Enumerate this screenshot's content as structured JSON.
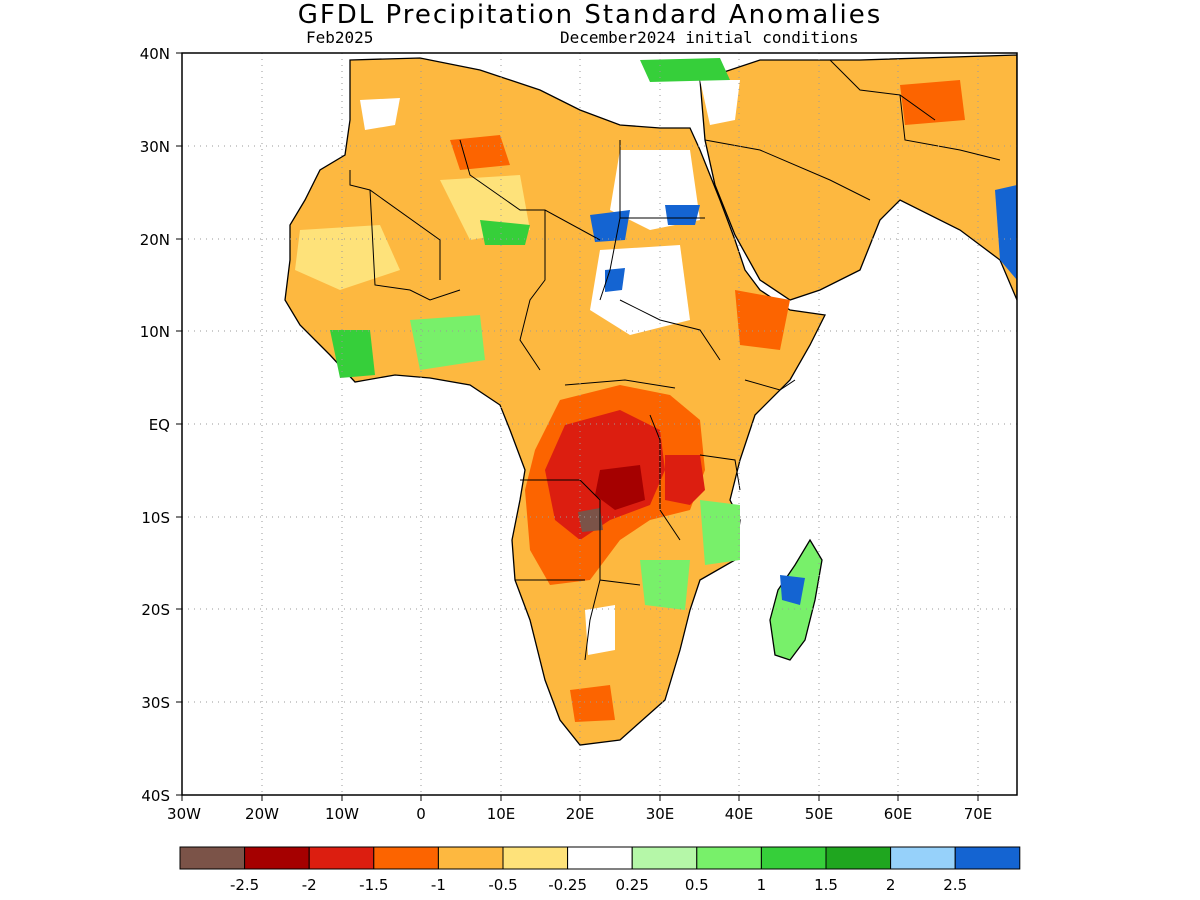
{
  "title": "GFDL Precipitation Standard Anomalies",
  "subtitle_left": "Feb2025",
  "subtitle_right": "December2024 initial conditions",
  "lat_labels": [
    "40N",
    "30N",
    "20N",
    "10N",
    "EQ",
    "10S",
    "20S",
    "30S",
    "40S"
  ],
  "lon_labels": [
    "30W",
    "20W",
    "10W",
    "0",
    "10E",
    "20E",
    "30E",
    "40E",
    "50E",
    "60E",
    "70E"
  ],
  "colorbar": {
    "colors": [
      "#7b5348",
      "#a50000",
      "#dc1e10",
      "#fc6400",
      "#fdb840",
      "#fee27a",
      "#ffffff",
      "#b5f7a8",
      "#78f06a",
      "#36cf3a",
      "#1fa61f",
      "#96d1fa",
      "#1464d2"
    ],
    "labels": [
      "-2.5",
      "-2",
      "-1.5",
      "-1",
      "-0.5",
      "-0.25",
      "0.25",
      "0.5",
      "1",
      "1.5",
      "2",
      "2.5"
    ]
  }
}
